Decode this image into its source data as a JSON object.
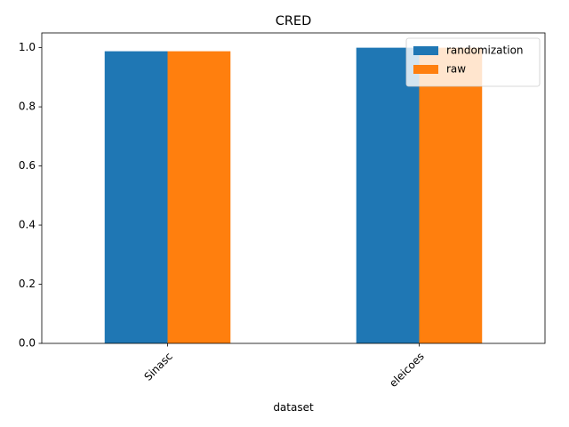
{
  "chart_data": {
    "type": "bar",
    "title": "CRED",
    "xlabel": "dataset",
    "ylabel": "",
    "categories": [
      "Sinasc",
      "eleicoes"
    ],
    "series": [
      {
        "name": "randomization",
        "values": [
          0.988,
          1.0
        ],
        "color": "#1f77b4"
      },
      {
        "name": "raw",
        "values": [
          0.988,
          1.0
        ],
        "color": "#ff7f0e"
      }
    ],
    "ylim": [
      0,
      1.05
    ],
    "yticks": [
      0.0,
      0.2,
      0.4,
      0.6,
      0.8,
      1.0
    ],
    "ytick_labels": [
      "0.0",
      "0.2",
      "0.4",
      "0.6",
      "0.8",
      "1.0"
    ],
    "grid": false,
    "legend_position": "top-right"
  }
}
